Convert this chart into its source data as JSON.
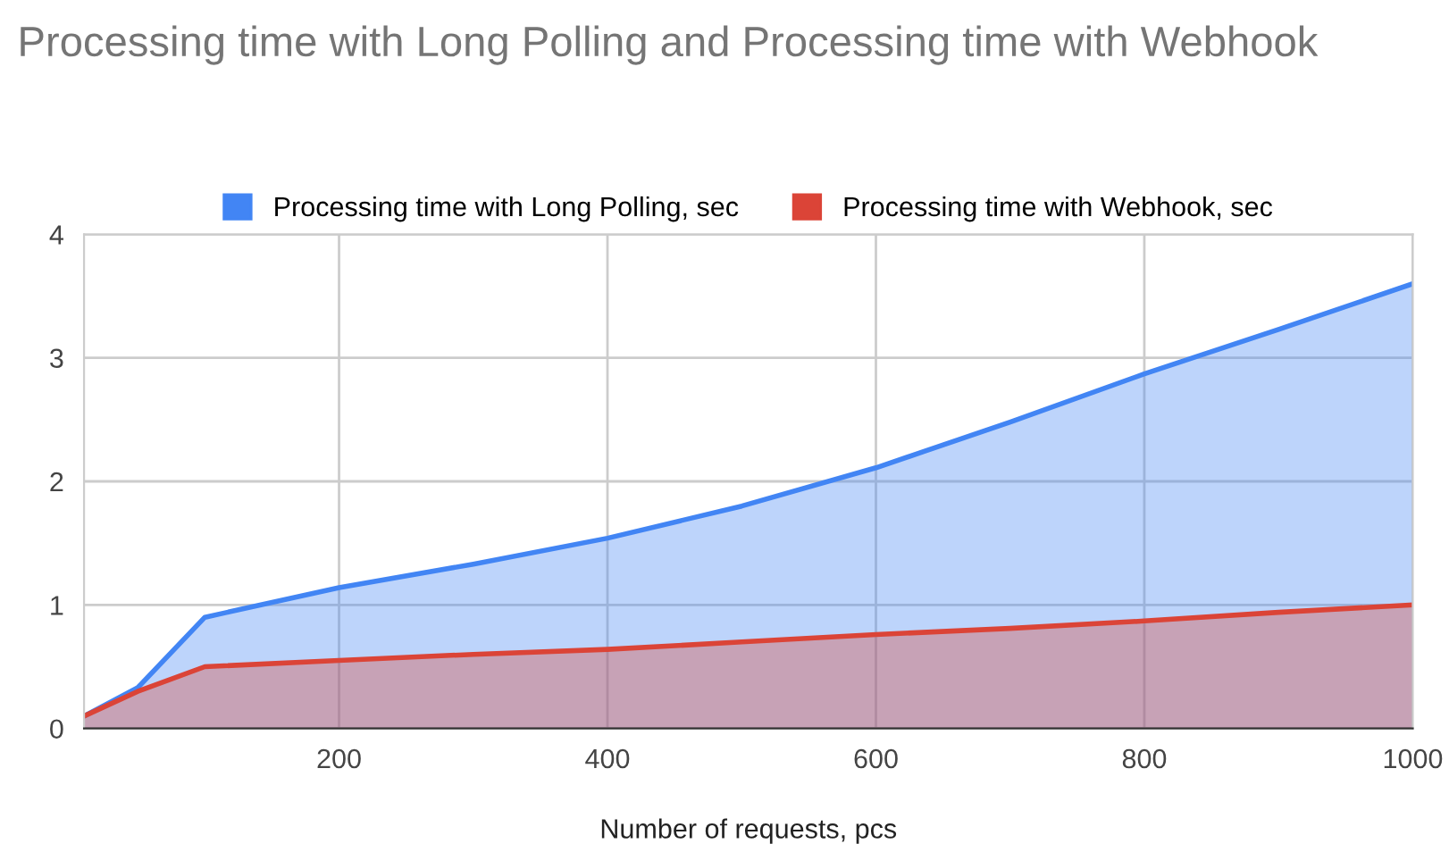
{
  "chart_data": {
    "type": "area",
    "title": "Processing time with Long Polling and Processing time with Webhook",
    "xlabel": "Number of requests, pcs",
    "x": [
      10,
      50,
      100,
      200,
      300,
      400,
      500,
      600,
      700,
      800,
      900,
      1000
    ],
    "series": [
      {
        "name": "Processing time with Long Polling, sec",
        "color": "#4285f4",
        "values": [
          0.1,
          0.33,
          0.9,
          1.14,
          1.33,
          1.54,
          1.8,
          2.11,
          2.48,
          2.87,
          3.23,
          3.6
        ]
      },
      {
        "name": "Processing time with Webhook, sec",
        "color": "#db4437",
        "values": [
          0.1,
          0.3,
          0.5,
          0.55,
          0.6,
          0.64,
          0.7,
          0.76,
          0.81,
          0.87,
          0.94,
          1.0
        ]
      }
    ],
    "xlim": [
      10,
      1000
    ],
    "xticks": [
      200,
      400,
      600,
      800,
      1000
    ],
    "ylim": [
      0,
      4
    ],
    "yticks": [
      0,
      1,
      2,
      3,
      4
    ],
    "grid": true,
    "legend": "top"
  }
}
